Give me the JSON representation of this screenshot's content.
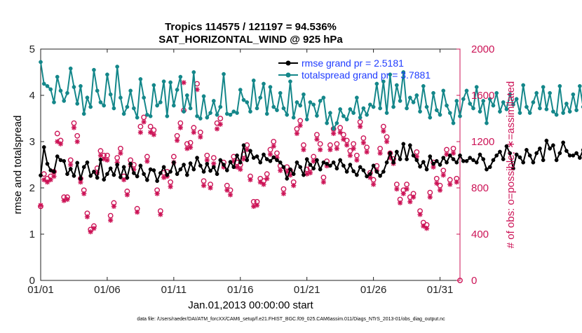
{
  "chart_data": {
    "type": "line",
    "title": "Tropics 114575 / 121197 = 94.536%",
    "subtitle": "SAT_HORIZONTAL_WIND @ 925 hPa",
    "xlabel": "Jan.01,2013 00:00:00 start",
    "ylabel": "rmse and totalspread",
    "y2label": "# of obs: o=possible; ∗=assimilated",
    "footnote": "data file: /Users/raeder/DAI/ATM_forcXX/CAM6_setup/f.e21.FHIST_BGC.f09_025.CAM6assim.011/Diags_NTrS_2013-01/obs_diag_output.nc",
    "xlim": [
      0,
      31.5
    ],
    "ylim": [
      0,
      5
    ],
    "y2lim": [
      0,
      2000
    ],
    "x_ticks": [
      {
        "x": 0,
        "label": "01/01"
      },
      {
        "x": 5,
        "label": "01/06"
      },
      {
        "x": 10,
        "label": "01/11"
      },
      {
        "x": 15,
        "label": "01/16"
      },
      {
        "x": 20,
        "label": "01/21"
      },
      {
        "x": 25,
        "label": "01/26"
      },
      {
        "x": 30,
        "label": "01/31"
      }
    ],
    "y_ticks": [
      0,
      1,
      2,
      3,
      4,
      5
    ],
    "y2_ticks": [
      0,
      400,
      800,
      1200,
      1600,
      2000
    ],
    "colors": {
      "rmse": "#000000",
      "spread": "#14878a",
      "obs": "#cc1356",
      "legend_text": "#1f3cff",
      "axis_right": "#cc1356"
    },
    "legend": {
      "placement": "top-right",
      "entries": [
        "rmse grand pr = 2.5181",
        "totalspread grand pr = 3.7881"
      ]
    },
    "x_step": 0.25,
    "series": [
      {
        "name": "rmse grand pr = 2.5181",
        "axis": "left",
        "marker": "circle-filled",
        "values": [
          2.27,
          2.88,
          2.52,
          2.38,
          2.35,
          2.68,
          2.6,
          2.58,
          2.3,
          2.41,
          2.26,
          2.54,
          2.2,
          2.45,
          2.55,
          2.26,
          2.35,
          2.22,
          2.61,
          2.18,
          2.3,
          2.42,
          2.28,
          2.5,
          2.23,
          2.45,
          2.22,
          2.52,
          2.32,
          2.25,
          2.48,
          2.3,
          2.17,
          2.4,
          2.38,
          2.15,
          2.32,
          2.45,
          2.28,
          2.35,
          2.55,
          2.3,
          2.4,
          2.5,
          2.28,
          2.53,
          2.4,
          2.65,
          2.48,
          2.35,
          2.52,
          2.37,
          2.45,
          2.3,
          2.6,
          2.5,
          2.38,
          2.56,
          2.45,
          2.7,
          2.55,
          2.92,
          2.6,
          2.8,
          2.65,
          2.68,
          2.55,
          2.72,
          2.62,
          2.58,
          2.66,
          2.6,
          2.55,
          2.45,
          2.2,
          2.4,
          2.3,
          2.55,
          2.45,
          2.28,
          2.62,
          2.5,
          2.42,
          2.6,
          2.4,
          2.55,
          2.52,
          2.48,
          2.55,
          2.42,
          2.6,
          2.48,
          2.35,
          2.5,
          2.36,
          2.28,
          2.45,
          2.38,
          2.25,
          2.3,
          2.48,
          2.35,
          2.26,
          2.35,
          2.55,
          2.75,
          2.55,
          2.78,
          2.62,
          2.95,
          2.62,
          2.92,
          2.7,
          2.6,
          2.46,
          2.56,
          2.4,
          2.68,
          2.52,
          2.58,
          2.5,
          2.65,
          2.55,
          2.7,
          2.62,
          2.55,
          2.7,
          2.58,
          2.58,
          2.65,
          2.6,
          2.55,
          2.72,
          2.62,
          2.4,
          2.45,
          2.6,
          2.7,
          2.78,
          2.62,
          2.9,
          2.75,
          2.42,
          2.72,
          2.66,
          2.55,
          2.82,
          2.7,
          2.55,
          2.75,
          2.85,
          2.6,
          3.02,
          2.85,
          2.92,
          2.6,
          2.75,
          2.98,
          2.8,
          2.7,
          2.7,
          2.75,
          2.65,
          2.82,
          2.7,
          2.62,
          3.08
        ]
      },
      {
        "name": "totalspread grand pr = 3.7881",
        "axis": "left",
        "marker": "circle-filled",
        "values": [
          4.72,
          4.25,
          4.2,
          4.13,
          3.85,
          4.4,
          4.1,
          3.88,
          4.05,
          4.58,
          4.18,
          3.82,
          4.2,
          3.6,
          3.95,
          3.75,
          4.55,
          4.1,
          3.85,
          3.78,
          4.45,
          4.02,
          3.72,
          4.62,
          3.95,
          3.6,
          3.75,
          4.1,
          3.72,
          3.52,
          4.35,
          3.95,
          3.58,
          3.55,
          4.22,
          3.78,
          3.85,
          4.3,
          3.55,
          4.28,
          3.78,
          4.12,
          4.4,
          3.65,
          4.0,
          3.72,
          4.5,
          3.55,
          3.5,
          3.98,
          3.52,
          3.62,
          3.88,
          3.58,
          3.75,
          4.46,
          3.6,
          3.58,
          3.65,
          3.62,
          4.12,
          3.9,
          3.85,
          3.65,
          4.32,
          3.72,
          3.95,
          4.25,
          3.6,
          4.18,
          3.75,
          3.68,
          4.05,
          3.72,
          3.58,
          4.3,
          3.52,
          3.85,
          3.78,
          4.02,
          3.48,
          3.85,
          3.8,
          3.56,
          3.88,
          3.95,
          3.4,
          3.62,
          3.28,
          3.4,
          3.7,
          3.55,
          3.48,
          3.7,
          3.62,
          3.95,
          3.52,
          3.72,
          3.58,
          3.8,
          3.75,
          4.25,
          3.72,
          4.3,
          3.62,
          4.45,
          3.75,
          4.22,
          3.88,
          4.5,
          3.72,
          3.95,
          3.85,
          4.0,
          3.65,
          4.2,
          3.75,
          3.52,
          4.05,
          3.68,
          3.58,
          4.1,
          3.78,
          3.62,
          3.4,
          3.88,
          3.55,
          3.92,
          4.1,
          3.82,
          3.72,
          4.18,
          3.65,
          3.88,
          3.4,
          3.92,
          3.78,
          4.05,
          3.65,
          3.85,
          3.7,
          4.02,
          3.8,
          3.92,
          3.62,
          4.22,
          3.75,
          3.62,
          3.85,
          4.05,
          3.72,
          4.18,
          3.7,
          4.05,
          3.65,
          3.58,
          4.2,
          3.62,
          3.82,
          3.65,
          4.02,
          3.68,
          4.2,
          3.75,
          3.88,
          4.18
        ]
      }
    ],
    "obs_markers": {
      "axis": "right",
      "possible": {
        "marker": "o",
        "x": [
          0,
          0.25,
          0.5,
          0.75,
          1.0,
          1.25,
          1.5,
          1.75,
          2.0,
          2.25,
          2.5,
          2.75,
          3.0,
          3.25,
          3.5,
          3.75,
          4.0,
          4.25,
          4.5,
          4.75,
          5.0,
          5.25,
          5.5,
          5.75,
          6.0,
          6.25,
          6.5,
          6.75,
          7.0,
          7.25,
          7.5,
          7.75,
          8.0,
          8.25,
          8.5,
          8.75,
          9.0,
          9.25,
          9.5,
          9.75,
          10.0,
          10.25,
          10.5,
          10.75,
          11.0,
          11.25,
          11.5,
          11.75,
          12.0,
          12.25,
          12.5,
          12.75,
          13.0,
          13.25,
          13.5,
          13.75,
          14.0,
          14.25,
          14.5,
          14.75,
          15.0,
          15.25,
          15.5,
          15.75,
          16.0,
          16.25,
          16.5,
          16.75,
          17.0,
          17.25,
          17.5,
          17.75,
          18.0,
          18.25,
          18.5,
          18.75,
          19.0,
          19.25,
          19.5,
          19.75,
          20.0,
          20.25,
          20.5,
          20.75,
          21.0,
          21.25,
          21.5,
          21.75,
          22.0,
          22.25,
          22.5,
          22.75,
          23.0,
          23.25,
          23.5,
          23.75,
          24.0,
          24.25,
          24.5,
          24.75,
          25.0,
          25.25,
          25.5,
          25.75,
          26.0,
          26.25,
          26.5,
          26.75,
          27.0,
          27.25,
          27.5,
          27.75,
          28.0,
          28.25,
          28.5,
          28.75,
          29.0,
          29.25,
          29.5,
          29.75,
          30.0,
          30.25,
          30.5,
          30.75,
          31.0,
          31.25
        ],
        "values": [
          640,
          920,
          880,
          900,
          940,
          1270,
          1210,
          720,
          720,
          1040,
          1360,
          1250,
          880,
          780,
          580,
          440,
          470,
          970,
          1120,
          1080,
          1080,
          560,
          670,
          1060,
          1140,
          900,
          770,
          1040,
          1000,
          620,
          1330,
          1410,
          1070,
          1330,
          1300,
          780,
          600,
          930,
          940,
          850,
          1070,
          1250,
          1360,
          1470,
          1180,
          1190,
          1320,
          1700,
          1280,
          860,
          1080,
          830,
          1060,
          1360,
          1400,
          1020,
          820,
          780,
          1070,
          1020,
          1000,
          1090,
          1170,
          900,
          680,
          680,
          880,
          860,
          920,
          1130,
          1200,
          1100,
          990,
          790,
          980,
          950,
          850,
          1310,
          1380,
          1170,
          960,
          970,
          1070,
          1260,
          1180,
          890,
          1030,
          1170,
          1310,
          1180,
          1320,
          1260,
          1210,
          1120,
          1180,
          1080,
          1370,
          1230,
          1150,
          930,
          870,
          990,
          1140,
          1330,
          1240,
          1100,
          1050,
          830,
          700,
          780,
          830,
          720,
          750,
          1110,
          600,
          500,
          480,
          760,
          1020,
          880,
          820,
          950,
          1130,
          870,
          1140,
          880
        ]
      },
      "assimilated": {
        "marker": "*",
        "x": [
          0,
          0.25,
          0.5,
          0.75,
          1.0,
          1.25,
          1.5,
          1.75,
          2.0,
          2.25,
          2.5,
          2.75,
          3.0,
          3.25,
          3.5,
          3.75,
          4.0,
          4.25,
          4.5,
          4.75,
          5.0,
          5.25,
          5.5,
          5.75,
          6.0,
          6.25,
          6.5,
          6.75,
          7.0,
          7.25,
          7.5,
          7.75,
          8.0,
          8.25,
          8.5,
          8.75,
          9.0,
          9.25,
          9.5,
          9.75,
          10.0,
          10.25,
          10.5,
          10.75,
          11.0,
          11.25,
          11.5,
          11.75,
          12.0,
          12.25,
          12.5,
          12.75,
          13.0,
          13.25,
          13.5,
          13.75,
          14.0,
          14.25,
          14.5,
          14.75,
          15.0,
          15.25,
          15.5,
          15.75,
          16.0,
          16.25,
          16.5,
          16.75,
          17.0,
          17.25,
          17.5,
          17.75,
          18.0,
          18.25,
          18.5,
          18.75,
          19.0,
          19.25,
          19.5,
          19.75,
          20.0,
          20.25,
          20.5,
          20.75,
          21.0,
          21.25,
          21.5,
          21.75,
          22.0,
          22.25,
          22.5,
          22.75,
          23.0,
          23.25,
          23.5,
          23.75,
          24.0,
          24.25,
          24.5,
          24.75,
          25.0,
          25.25,
          25.5,
          25.75,
          26.0,
          26.25,
          26.5,
          26.75,
          27.0,
          27.25,
          27.5,
          27.75,
          28.0,
          28.25,
          28.5,
          28.75,
          29.0,
          29.25,
          29.5,
          29.75,
          30.0,
          30.25,
          30.5,
          30.75,
          31.0,
          31.25
        ],
        "values": [
          650,
          870,
          850,
          870,
          900,
          1200,
          1180,
          690,
          700,
          1000,
          1320,
          1200,
          850,
          750,
          550,
          420,
          450,
          930,
          1080,
          1050,
          1040,
          520,
          640,
          1020,
          1100,
          870,
          740,
          1000,
          960,
          590,
          1280,
          1370,
          1030,
          1280,
          1260,
          750,
          570,
          890,
          900,
          810,
          1020,
          1210,
          1320,
          1710,
          1140,
          1150,
          1280,
          1650,
          1240,
          820,
          1040,
          800,
          1010,
          1310,
          1350,
          980,
          780,
          740,
          1030,
          980,
          960,
          1050,
          1130,
          870,
          640,
          650,
          850,
          830,
          880,
          1090,
          1160,
          1060,
          950,
          750,
          940,
          910,
          820,
          1270,
          1340,
          1130,
          920,
          930,
          1030,
          1220,
          1130,
          850,
          990,
          1130,
          1270,
          1140,
          1280,
          1220,
          1170,
          1080,
          1140,
          1040,
          1330,
          1190,
          1110,
          890,
          830,
          950,
          1100,
          1290,
          1200,
          1060,
          1010,
          790,
          670,
          750,
          790,
          680,
          720,
          1070,
          570,
          470,
          450,
          720,
          980,
          840,
          780,
          910,
          1090,
          830,
          1100,
          850
        ]
      },
      "extra_point_last": {
        "x": 31.5,
        "value": 0
      }
    }
  }
}
